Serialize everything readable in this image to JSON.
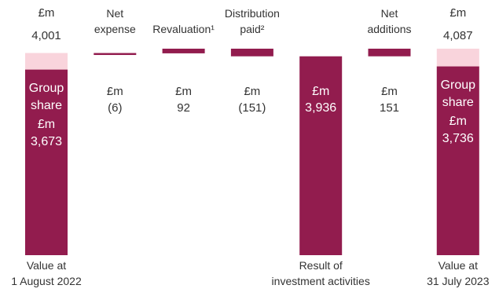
{
  "chart_data": {
    "type": "waterfall",
    "unit": "£m",
    "categories": [
      [
        "Value at",
        "1 August 2022"
      ],
      [
        "Net",
        "expense"
      ],
      [
        "Revaluation¹"
      ],
      [
        "Distribution",
        "paid²"
      ],
      [
        "Result of",
        "investment activities"
      ],
      [
        "Net",
        "additions"
      ],
      [
        "Value at",
        "31 July 2023"
      ]
    ],
    "measure": [
      "absolute",
      "relative",
      "relative",
      "relative",
      "absolute",
      "relative",
      "absolute"
    ],
    "values": [
      4001,
      -6,
      92,
      -151,
      3936,
      151,
      4087
    ],
    "value_labels": [
      "4,001",
      "(6)",
      "92",
      "(151)",
      "3,936",
      "151",
      "4,087"
    ],
    "color": "#921c4e",
    "group_share": {
      "label": "Group share",
      "color": "#921c4e",
      "total_color": "#f9d4dc",
      "values": [
        3673,
        null,
        null,
        null,
        null,
        null,
        3736
      ],
      "value_labels": [
        "3,673",
        null,
        null,
        null,
        null,
        null,
        "3,736"
      ]
    }
  }
}
